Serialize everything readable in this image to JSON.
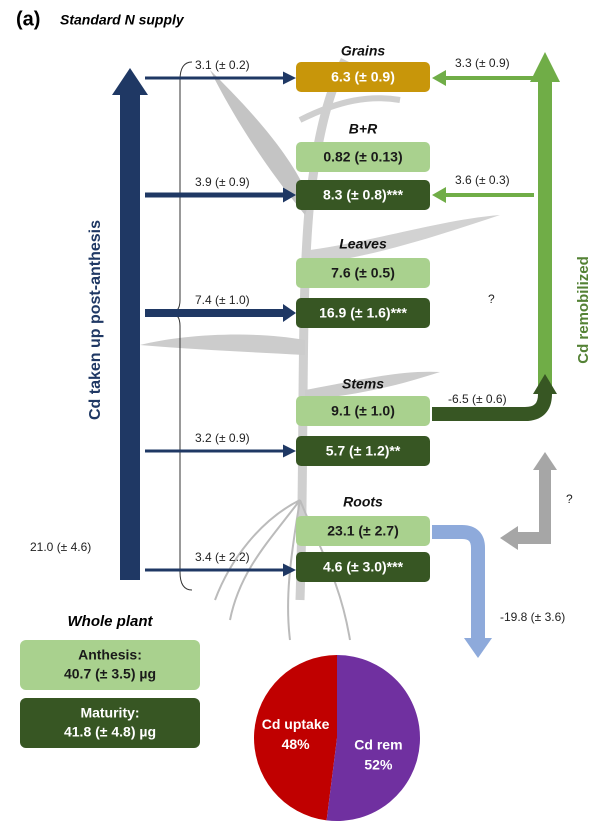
{
  "header": {
    "panel": "(a)",
    "title": "Standard N supply"
  },
  "compartments": [
    {
      "name": "Grains",
      "boxes": [
        "6.3 (± 0.9)"
      ]
    },
    {
      "name": "B+R",
      "boxes": [
        "0.82 (± 0.13)",
        "8.3 (± 0.8)***"
      ]
    },
    {
      "name": "Leaves",
      "boxes": [
        "7.6 (± 0.5)",
        "16.9 (± 1.6)***"
      ]
    },
    {
      "name": "Stems",
      "boxes": [
        "9.1 (± 1.0)",
        "5.7 (± 1.2)**"
      ]
    },
    {
      "name": "Roots",
      "boxes": [
        "23.1 (± 2.7)",
        "4.6 (± 3.0)***"
      ]
    }
  ],
  "uptake": {
    "label": "Cd taken up post-anthesis",
    "total": "21.0 (± 4.6)",
    "flows": [
      "3.1 (± 0.2)",
      "3.9 (± 0.9)",
      "7.4 (± 1.0)",
      "3.2 (± 0.9)",
      "3.4 (± 2.2)"
    ]
  },
  "remobilization": {
    "label": "Cd remobilized",
    "flows": [
      "3.3 (± 0.9)",
      "3.6 (± 0.3)",
      "?",
      "-6.5 (± 0.6)"
    ]
  },
  "roots_out": {
    "flow": "-19.8 (± 3.6)",
    "question": "?"
  },
  "whole_plant": {
    "title": "Whole plant",
    "anthesis": {
      "label": "Anthesis:",
      "value": "40.7 (± 3.5) µg"
    },
    "maturity": {
      "label": "Maturity:",
      "value": "41.8 (± 4.8) µg"
    }
  },
  "pie": {
    "slices": [
      {
        "label": "Cd uptake",
        "value": 48,
        "value_label": "48%",
        "color": "#c00000"
      },
      {
        "label": "Cd rem",
        "value": 52,
        "value_label": "52%",
        "color": "#7030a0"
      }
    ]
  }
}
